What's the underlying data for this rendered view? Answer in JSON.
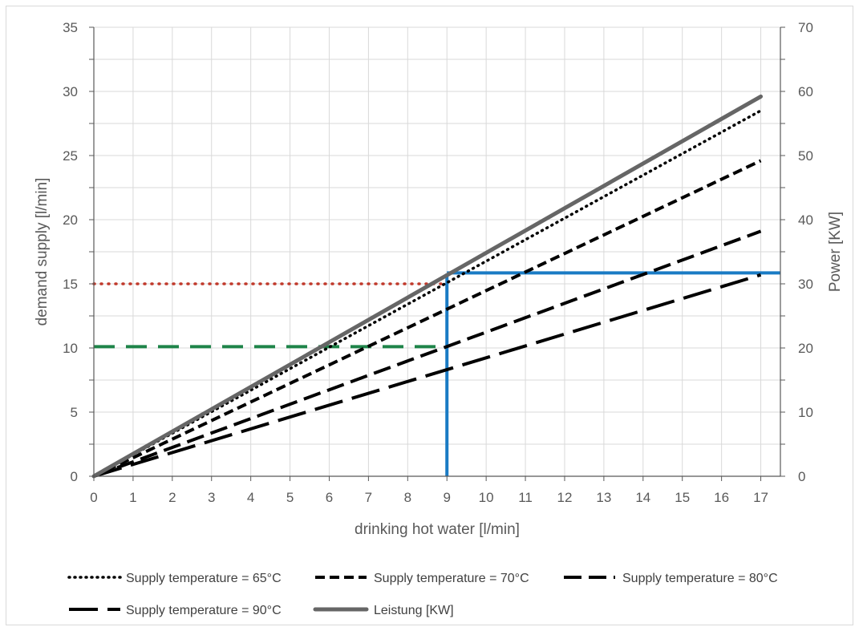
{
  "chart_data": {
    "type": "line",
    "title": "",
    "xlabel": "drinking hot water [l/min]",
    "ylabel": "demand supply [l/min]",
    "y2label": "Power [KW]",
    "xlim": [
      0,
      17.5
    ],
    "ylim": [
      0,
      35
    ],
    "y2lim": [
      0,
      70
    ],
    "x_ticks": [
      0,
      1,
      2,
      3,
      4,
      5,
      6,
      7,
      8,
      9,
      10,
      11,
      12,
      13,
      14,
      15,
      16,
      17
    ],
    "y_ticks": [
      0,
      5,
      10,
      15,
      20,
      25,
      30,
      35
    ],
    "y2_ticks": [
      0,
      10,
      20,
      30,
      40,
      50,
      60,
      70
    ],
    "grid": true,
    "legend_position": "bottom",
    "series": [
      {
        "name": "Supply temperature = 65°C",
        "axis": "left",
        "dash": "dot",
        "color": "#000000",
        "x": [
          0,
          17
        ],
        "y": [
          0,
          28.5
        ]
      },
      {
        "name": "Supply temperature = 70°C",
        "axis": "left",
        "dash": "dash",
        "color": "#000000",
        "x": [
          0,
          17
        ],
        "y": [
          0,
          24.6
        ]
      },
      {
        "name": "Supply temperature = 80°C",
        "axis": "left",
        "dash": "long-dash",
        "color": "#000000",
        "x": [
          0,
          17
        ],
        "y": [
          0,
          19.1
        ]
      },
      {
        "name": "Supply temperature = 90°C",
        "axis": "left",
        "dash": "long-dash-dot",
        "color": "#000000",
        "x": [
          0,
          17
        ],
        "y": [
          0,
          15.7
        ]
      },
      {
        "name": "Leistung [KW]",
        "axis": "right",
        "dash": "solid",
        "color": "#666666",
        "x": [
          0,
          17
        ],
        "y": [
          0,
          59.2
        ]
      }
    ],
    "annotations": [
      {
        "kind": "hline",
        "color": "#c0392b",
        "style": "dotted",
        "y": 15,
        "x_from": 0,
        "x_to": 8.9
      },
      {
        "kind": "hline",
        "color": "#1e8449",
        "style": "dashed",
        "y": 10.1,
        "x_from": 0,
        "x_to": 9
      },
      {
        "kind": "vline",
        "color": "#1a7bc4",
        "style": "solid",
        "x": 9,
        "y_from": 0,
        "y_to": 15.8
      },
      {
        "kind": "hline",
        "color": "#1a7bc4",
        "style": "solid",
        "y": 15.85,
        "x_from": 9,
        "x_to": 17.5
      }
    ]
  }
}
